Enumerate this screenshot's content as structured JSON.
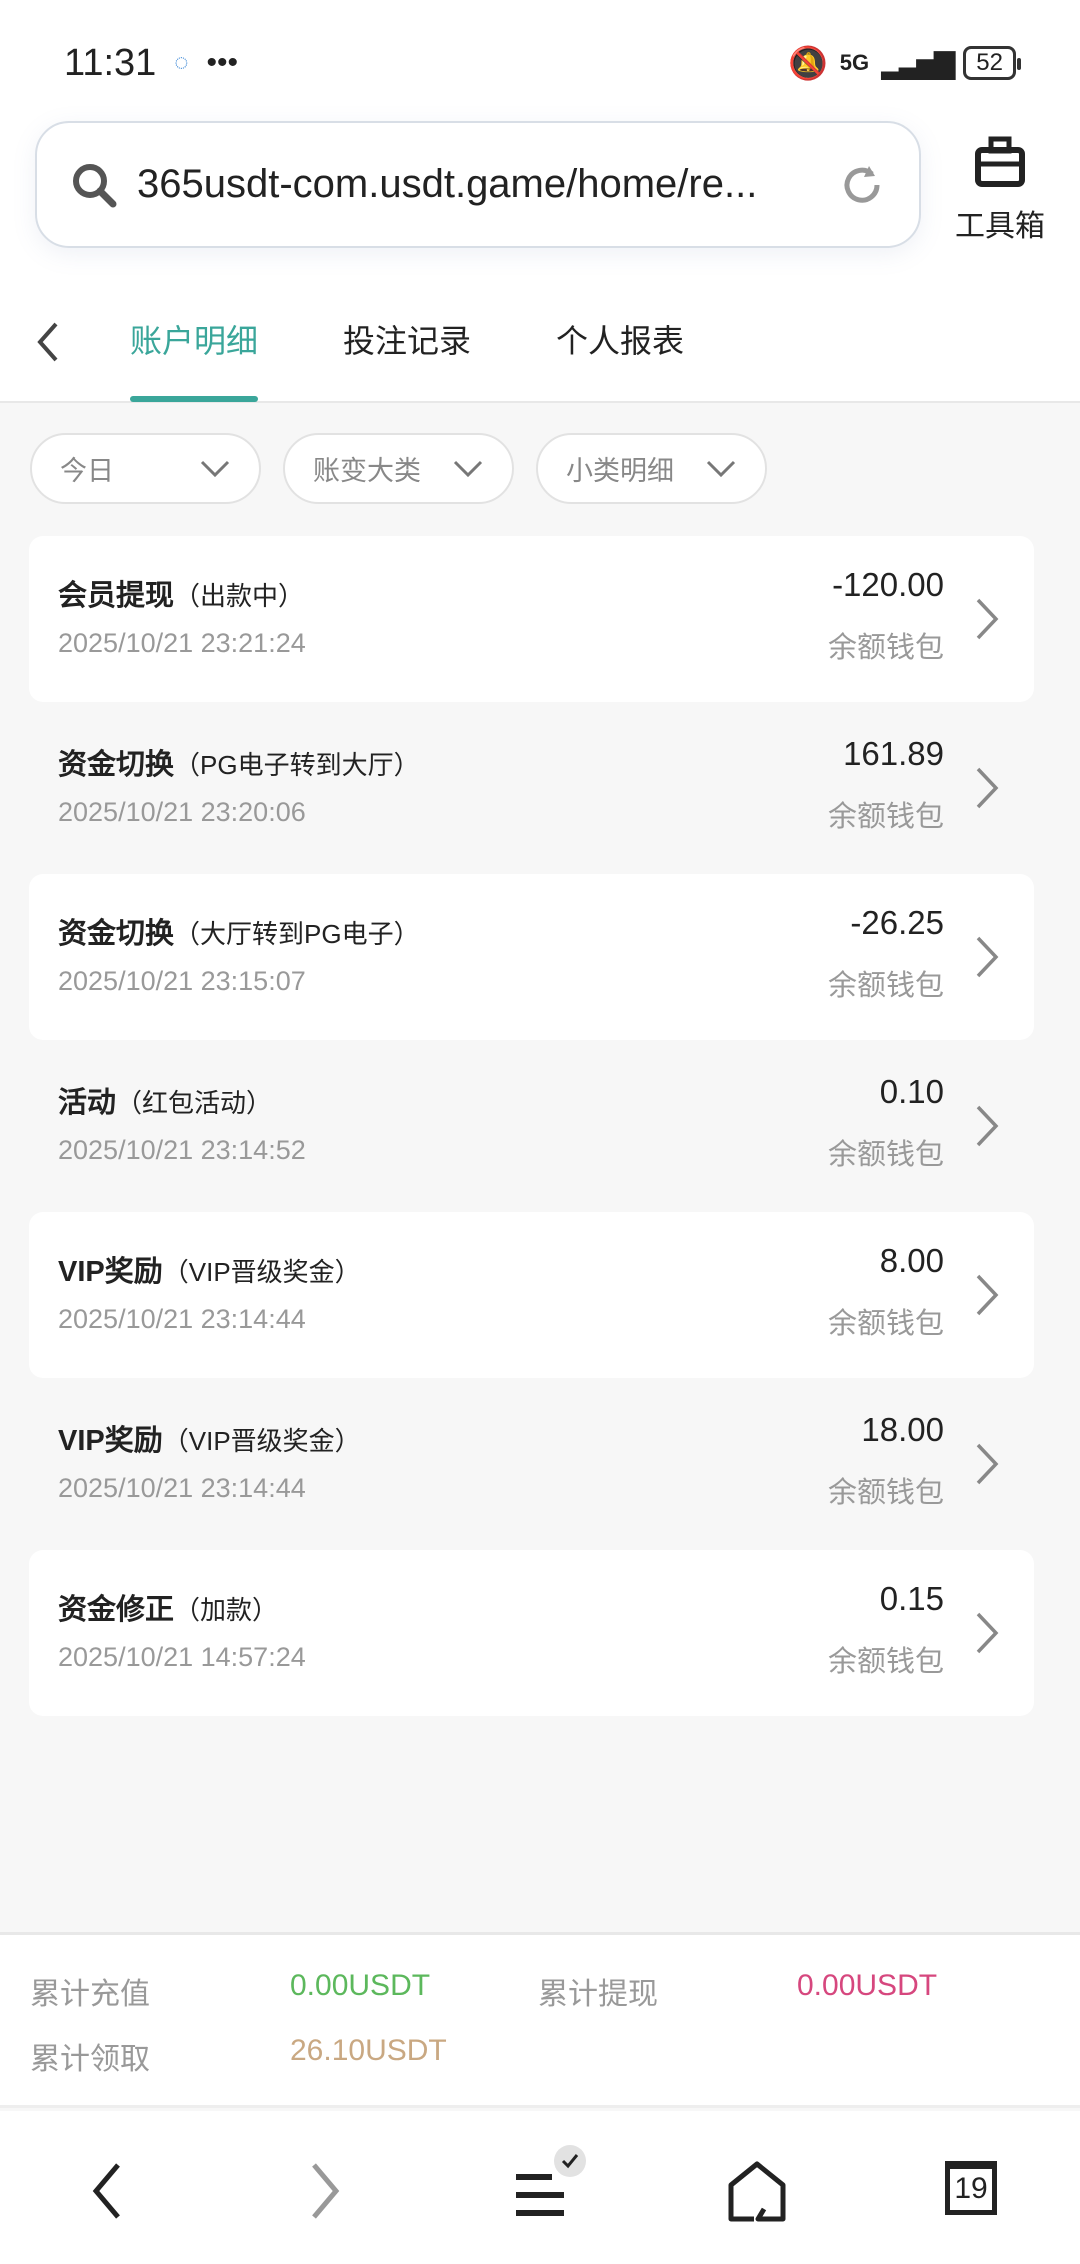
{
  "status_bar": {
    "time": "11:31",
    "network": "5G",
    "battery": "52"
  },
  "browser": {
    "url": "365usdt-com.usdt.game/home/re...",
    "toolbox_label": "工具箱"
  },
  "tabs": [
    {
      "label": "账户明细",
      "active": true
    },
    {
      "label": "投注记录"
    },
    {
      "label": "个人报表"
    }
  ],
  "filters": [
    {
      "value": "今日"
    },
    {
      "value": "账变大类"
    },
    {
      "value": "小类明细"
    }
  ],
  "records": [
    {
      "type": "会员提现",
      "detail": "（出款中）",
      "date": "2025/10/21 23:21:24",
      "amount": "-120.00",
      "wallet": "余额钱包"
    },
    {
      "type": "资金切换",
      "detail": "（PG电子转到大厅）",
      "date": "2025/10/21 23:20:06",
      "amount": "161.89",
      "wallet": "余额钱包"
    },
    {
      "type": "资金切换",
      "detail": "（大厅转到PG电子）",
      "date": "2025/10/21 23:15:07",
      "amount": "-26.25",
      "wallet": "余额钱包"
    },
    {
      "type": "活动",
      "detail": "（红包活动）",
      "date": "2025/10/21 23:14:52",
      "amount": "0.10",
      "wallet": "余额钱包"
    },
    {
      "type": "VIP奖励",
      "detail": "（VIP晋级奖金）",
      "date": "2025/10/21 23:14:44",
      "amount": "8.00",
      "wallet": "余额钱包"
    },
    {
      "type": "VIP奖励",
      "detail": "（VIP晋级奖金）",
      "date": "2025/10/21 23:14:44",
      "amount": "18.00",
      "wallet": "余额钱包"
    },
    {
      "type": "资金修正",
      "detail": "（加款）",
      "date": "2025/10/21 14:57:24",
      "amount": "0.15",
      "wallet": "余额钱包"
    }
  ],
  "summary": {
    "deposit_label": "累计充值",
    "deposit_value": "0.00USDT",
    "withdraw_label": "累计提现",
    "withdraw_value": "0.00USDT",
    "claimed_label": "累计领取",
    "claimed_value": "26.10USDT"
  },
  "bottom_nav": {
    "tab_count": "19"
  },
  "colors": {
    "accent": "#3aa69a",
    "deposit": "#5cb85c",
    "withdraw": "#d6477e",
    "claimed": "#c9a882"
  }
}
